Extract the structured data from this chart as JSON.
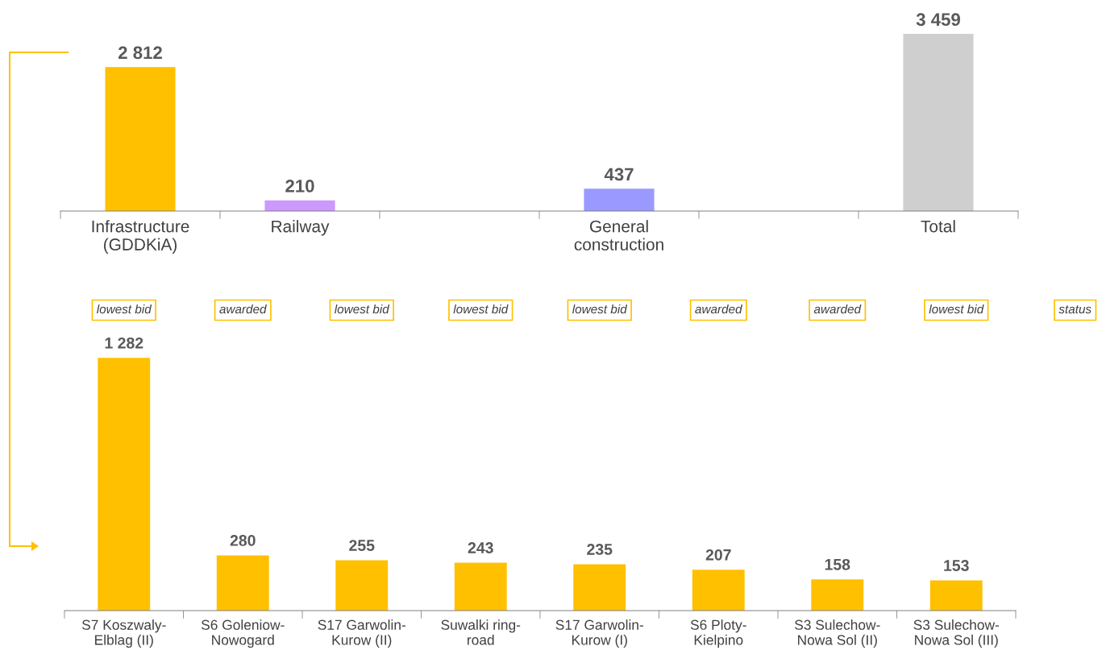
{
  "chart_data": [
    {
      "type": "bar",
      "categories": [
        "Infrastructure\n(GDDKiA)",
        "Railway",
        null,
        "General\nconstruction",
        null,
        "Total"
      ],
      "values": [
        2812,
        210,
        null,
        437,
        null,
        3459
      ],
      "colors": [
        "#ffc000",
        "#cc99ff",
        null,
        "#9999ff",
        null,
        "#cfcfcf"
      ],
      "value_labels": [
        "2 812",
        "210",
        null,
        "437",
        null,
        "3 459"
      ]
    },
    {
      "type": "bar",
      "categories": [
        "S7 Koszwaly-\nElblag (II)",
        "S6 Goleniow-\nNowogard",
        "S17 Garwolin-\nKurow (II)",
        "Suwalki ring-\nroad",
        "S17 Garwolin-\nKurow (I)",
        "S6 Ploty-\nKielpino",
        "S3 Sulechow-\nNowa Sol (II)",
        "S3 Sulechow-\nNowa Sol (III)"
      ],
      "values": [
        1282,
        280,
        255,
        243,
        235,
        207,
        158,
        153
      ],
      "color": "#ffc000",
      "value_labels": [
        "1 282",
        "280",
        "255",
        "243",
        "235",
        "207",
        "158",
        "153"
      ],
      "annotations": [
        "lowest bid",
        "awarded",
        "lowest bid",
        "lowest bid",
        "lowest bid",
        "awarded",
        "awarded",
        "lowest bid",
        "status"
      ]
    }
  ]
}
